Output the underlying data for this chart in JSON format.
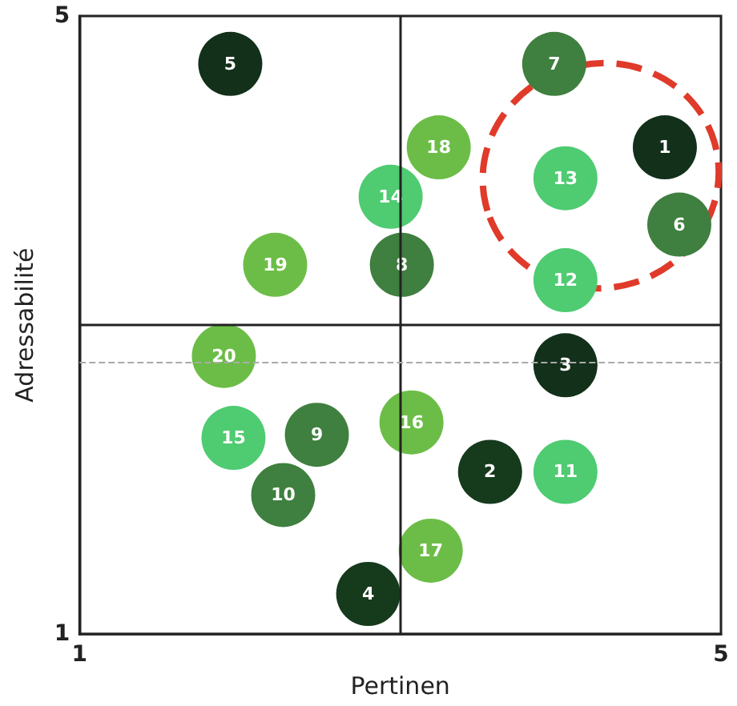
{
  "chart_data": {
    "type": "scatter",
    "xlabel": "Pertinen",
    "ylabel": "Adressabilité",
    "series": [
      {
        "name": "1",
        "color": "#12301a",
        "x": [
          4.65
        ],
        "values": [
          4.15
        ]
      },
      {
        "name": "2",
        "color": "#163a1c",
        "x": [
          3.56
        ],
        "values": [
          2.05
        ]
      },
      {
        "name": "3",
        "color": "#12301a",
        "x": [
          4.03
        ],
        "values": [
          2.74
        ]
      },
      {
        "name": "4",
        "color": "#163a1c",
        "x": [
          2.8
        ],
        "values": [
          1.26
        ]
      },
      {
        "name": "5",
        "color": "#12301a",
        "x": [
          1.94
        ],
        "values": [
          4.69
        ]
      },
      {
        "name": "6",
        "color": "#3f7f3f",
        "x": [
          4.74
        ],
        "values": [
          3.65
        ]
      },
      {
        "name": "7",
        "color": "#3f7f3f",
        "x": [
          3.96
        ],
        "values": [
          4.69
        ]
      },
      {
        "name": "8",
        "color": "#3f7f3f",
        "x": [
          3.01
        ],
        "values": [
          3.39
        ]
      },
      {
        "name": "9",
        "color": "#3f7f3f",
        "x": [
          2.48
        ],
        "values": [
          2.29
        ]
      },
      {
        "name": "10",
        "color": "#3f7f3f",
        "x": [
          2.27
        ],
        "values": [
          1.9
        ]
      },
      {
        "name": "11",
        "color": "#4fcb72",
        "x": [
          4.03
        ],
        "values": [
          2.05
        ]
      },
      {
        "name": "12",
        "color": "#4fcb72",
        "x": [
          4.03
        ],
        "values": [
          3.29
        ]
      },
      {
        "name": "13",
        "color": "#4fcb72",
        "x": [
          4.03
        ],
        "values": [
          3.95
        ]
      },
      {
        "name": "14",
        "color": "#4fcb72",
        "x": [
          2.94
        ],
        "values": [
          3.83
        ]
      },
      {
        "name": "15",
        "color": "#4fcb72",
        "x": [
          1.96
        ],
        "values": [
          2.27
        ]
      },
      {
        "name": "16",
        "color": "#6cbd47",
        "x": [
          3.07
        ],
        "values": [
          2.37
        ]
      },
      {
        "name": "17",
        "color": "#6cbd47",
        "x": [
          3.19
        ],
        "values": [
          1.54
        ]
      },
      {
        "name": "18",
        "color": "#6cbd47",
        "x": [
          3.24
        ],
        "values": [
          4.15
        ]
      },
      {
        "name": "19",
        "color": "#6cbd47",
        "x": [
          2.22
        ],
        "values": [
          3.39
        ]
      },
      {
        "name": "20",
        "color": "#6cbd47",
        "x": [
          1.9
        ],
        "values": [
          2.8
        ]
      }
    ],
    "xlim": [
      1,
      5
    ],
    "ylim": [
      1,
      5
    ],
    "xticks": [
      1,
      5
    ],
    "yticks": [
      1,
      5
    ],
    "ref_lines": [
      {
        "axis": "x",
        "value": 3,
        "color": "#222222",
        "line_style": "solid"
      },
      {
        "axis": "y",
        "value": 3,
        "color": "#222222",
        "line_style": "solid"
      },
      {
        "axis": "y",
        "value": 2.76,
        "color": "#aaaaaa",
        "line_style": "dashed"
      }
    ],
    "marker": "circle"
  }
}
